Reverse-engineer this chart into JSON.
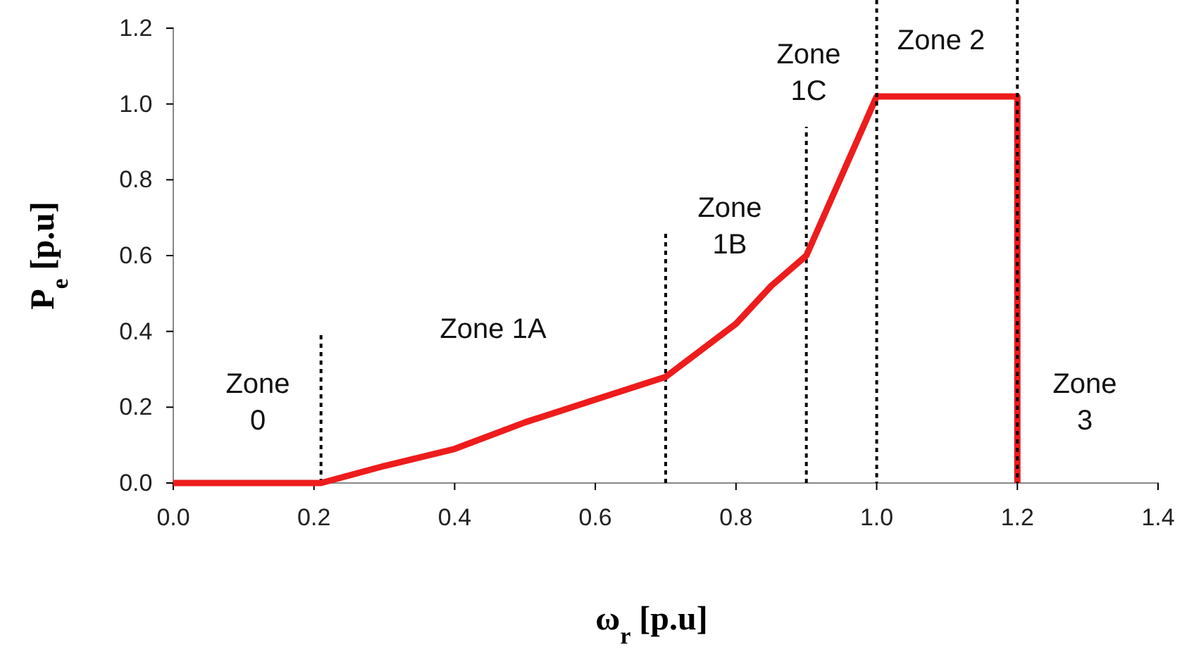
{
  "chart_data": {
    "type": "line",
    "xlabel": "ω$_{r}$  [p.u]",
    "ylabel": "P$_{e}$  [p.u]",
    "xlim": [
      0,
      1.4
    ],
    "xticks": [
      {
        "value": 0,
        "label": "0.0"
      },
      {
        "value": 0.2,
        "label": "0.2"
      },
      {
        "value": 0.4,
        "label": "0.4"
      },
      {
        "value": 0.6,
        "label": "0.6"
      },
      {
        "value": 0.8,
        "label": "0.8"
      },
      {
        "value": 1,
        "label": "1.0"
      },
      {
        "value": 1.2,
        "label": "1.2"
      },
      {
        "value": 1.4,
        "label": "1.4"
      }
    ],
    "ylim": [
      0,
      1.2
    ],
    "yticks": [
      {
        "value": 0,
        "label": "0.0"
      },
      {
        "value": 0.2,
        "label": "0.2"
      },
      {
        "value": 0.4,
        "label": "0.4"
      },
      {
        "value": 0.6,
        "label": "0.6"
      },
      {
        "value": 0.8,
        "label": "0.8"
      },
      {
        "value": 1,
        "label": "1.0"
      },
      {
        "value": 1.2,
        "label": "1.2"
      }
    ],
    "marker": "none",
    "ref_lines": [
      {
        "axis": "x",
        "value": 1.0,
        "color": "#000000",
        "line_style": "dotted"
      },
      {
        "axis": "x",
        "value": 1.2,
        "color": "#000000",
        "line_style": "dotted"
      }
    ],
    "series": [
      {
        "color": "#ee1c1c",
        "line_style": "solid",
        "x": [
          0,
          0.21,
          0.3,
          0.4,
          0.5,
          0.6,
          0.7,
          0.8,
          0.85,
          0.9,
          1.0,
          1.2,
          1.2
        ],
        "values": [
          0,
          0,
          0.045,
          0.09,
          0.16,
          0.22,
          0.28,
          0.42,
          0.52,
          0.6,
          1.02,
          1.02,
          0
        ]
      },
      {
        "color": "#000000",
        "line_style": "dotted",
        "x": [
          0.21,
          0.21
        ],
        "values": [
          0,
          0.39
        ]
      },
      {
        "color": "#000000",
        "line_style": "dotted",
        "x": [
          0.7,
          0.7
        ],
        "values": [
          0,
          0.66
        ]
      },
      {
        "color": "#000000",
        "line_style": "dotted",
        "x": [
          0.9,
          0.9
        ],
        "values": [
          0,
          0.94
        ]
      }
    ],
    "annotations": [
      "Zone\n0",
      "Zone 1A",
      "Zone\n1B",
      "Zone\n1C",
      "Zone 2",
      "Zone\n3"
    ]
  }
}
